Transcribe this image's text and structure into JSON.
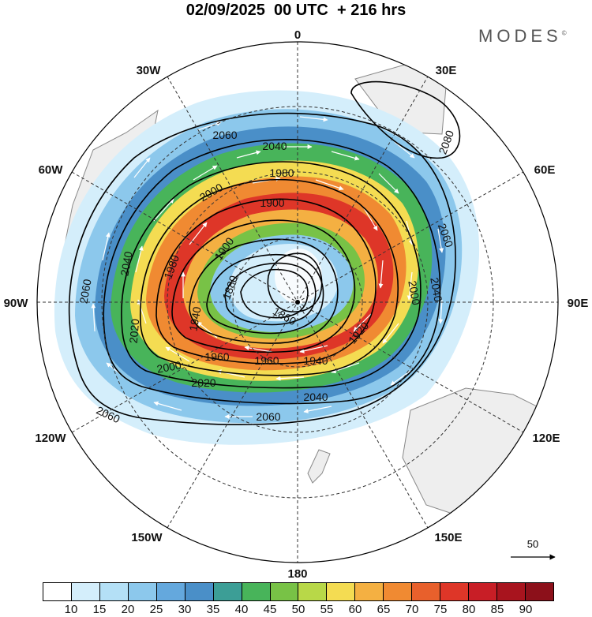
{
  "title": "02/09/2025  00 UTC  + 216 hrs",
  "brand": "MODES",
  "brand_mark": "©",
  "longitude_labels": {
    "top": "0",
    "bottom": "180",
    "left": "90W",
    "right": "90E",
    "nw30": "30W",
    "nw60": "60W",
    "sw120": "120W",
    "sw150": "150W",
    "ne30": "30E",
    "ne60": "60E",
    "se120": "120E",
    "se150": "150E"
  },
  "contour_labels": {
    "c2060_a": "2060",
    "c2060_b": "2060",
    "c2060_c": "2060",
    "c2060_d": "2060",
    "c2060_e": "2060",
    "c2080": "2080",
    "c2040_a": "2040",
    "c2040_b": "2040",
    "c2040_c": "2040",
    "c2040_d": "2040",
    "c2020_a": "2020",
    "c2020_b": "2020",
    "c2000_a": "2000",
    "c2000_b": "2000",
    "c2000_c": "2000",
    "c1980_a": "1980",
    "c1980_b": "1980",
    "c1960_a": "1960",
    "c1960_b": "1960",
    "c1940_a": "1940",
    "c1940_b": "1940",
    "c1920": "1920",
    "c1900_a": "1900",
    "c1900_b": "1900",
    "c1880": "1880",
    "c1860": "1860"
  },
  "reference_vector": "50",
  "colorbar": {
    "colors": [
      "#ffffff",
      "#d4eefb",
      "#b4e0f6",
      "#8cc8ec",
      "#64a8dd",
      "#4a8fc8",
      "#3c9e96",
      "#48b45a",
      "#78c246",
      "#b8d848",
      "#f4dc52",
      "#f4b042",
      "#f08a32",
      "#e8602c",
      "#de3628",
      "#c81e26",
      "#a8141e",
      "#8c101a"
    ],
    "ticks": [
      "10",
      "15",
      "20",
      "25",
      "30",
      "35",
      "40",
      "45",
      "50",
      "55",
      "60",
      "65",
      "70",
      "75",
      "80",
      "85",
      "90"
    ]
  },
  "colors": {
    "land": "#eeeeee",
    "coast": "#888888",
    "contour": "#000000",
    "wind_arrow": "#ffffff"
  }
}
